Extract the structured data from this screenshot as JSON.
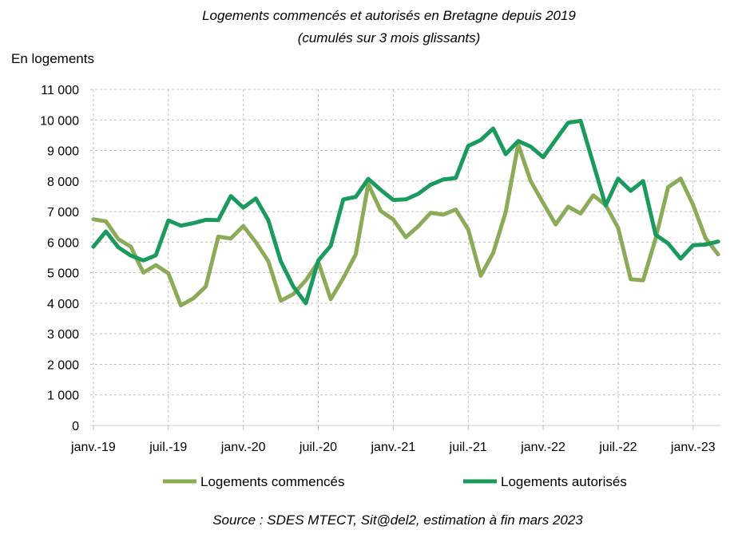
{
  "chart_data": {
    "type": "line",
    "title": "Logements commencés et autorisés en Bretagne depuis 2019",
    "subtitle": "(cumulés sur 3 mois glissants)",
    "ylabel": "En logements",
    "ylim": [
      0,
      11000
    ],
    "yticks": [
      0,
      1000,
      2000,
      3000,
      4000,
      5000,
      6000,
      7000,
      8000,
      9000,
      10000,
      11000
    ],
    "ytick_labels": [
      "0",
      "1 000",
      "2 000",
      "3 000",
      "4 000",
      "5 000",
      "6 000",
      "7 000",
      "8 000",
      "9 000",
      "10 000",
      "11 000"
    ],
    "xtick_labels": [
      "janv.-19",
      "juil.-19",
      "janv.-20",
      "juil.-20",
      "janv.-21",
      "juil.-21",
      "janv.-22",
      "juil.-22",
      "janv.-23"
    ],
    "x": [
      "2019-01",
      "2019-02",
      "2019-03",
      "2019-04",
      "2019-05",
      "2019-06",
      "2019-07",
      "2019-08",
      "2019-09",
      "2019-10",
      "2019-11",
      "2019-12",
      "2020-01",
      "2020-02",
      "2020-03",
      "2020-04",
      "2020-05",
      "2020-06",
      "2020-07",
      "2020-08",
      "2020-09",
      "2020-10",
      "2020-11",
      "2020-12",
      "2021-01",
      "2021-02",
      "2021-03",
      "2021-04",
      "2021-05",
      "2021-06",
      "2021-07",
      "2021-08",
      "2021-09",
      "2021-10",
      "2021-11",
      "2021-12",
      "2022-01",
      "2022-02",
      "2022-03",
      "2022-04",
      "2022-05",
      "2022-06",
      "2022-07",
      "2022-08",
      "2022-09",
      "2022-10",
      "2022-11",
      "2022-12",
      "2023-01",
      "2023-02",
      "2023-03"
    ],
    "grid": true,
    "legend_position": "bottom",
    "series": [
      {
        "name": "Logements commencés",
        "color": "#8cab58",
        "values": [
          6750,
          6680,
          6100,
          5850,
          5000,
          5250,
          4980,
          3930,
          4160,
          4550,
          6180,
          6120,
          6530,
          6000,
          5380,
          4080,
          4300,
          4750,
          5350,
          4130,
          4820,
          5600,
          7900,
          7020,
          6740,
          6160,
          6520,
          6960,
          6900,
          7070,
          6420,
          4900,
          5650,
          6980,
          9200,
          8000,
          7280,
          6580,
          7160,
          6940,
          7530,
          7220,
          6470,
          4790,
          4750,
          6120,
          7800,
          8080,
          7220,
          6130,
          5600
        ]
      },
      {
        "name": "Logements autorisés",
        "color": "#1a9a5d",
        "values": [
          5850,
          6350,
          5830,
          5560,
          5400,
          5570,
          6710,
          6540,
          6620,
          6730,
          6720,
          7510,
          7130,
          7430,
          6720,
          5370,
          4550,
          4000,
          5400,
          5880,
          7400,
          7480,
          8070,
          7710,
          7380,
          7400,
          7580,
          7880,
          8050,
          8100,
          9150,
          9340,
          9720,
          8880,
          9310,
          9130,
          8780,
          9350,
          9910,
          9970,
          8580,
          7200,
          8080,
          7680,
          8000,
          6240,
          5960,
          5460,
          5900,
          5920,
          6020
        ]
      }
    ],
    "source": "Source : SDES MTECT, Sit@del2, estimation à fin mars 2023"
  }
}
